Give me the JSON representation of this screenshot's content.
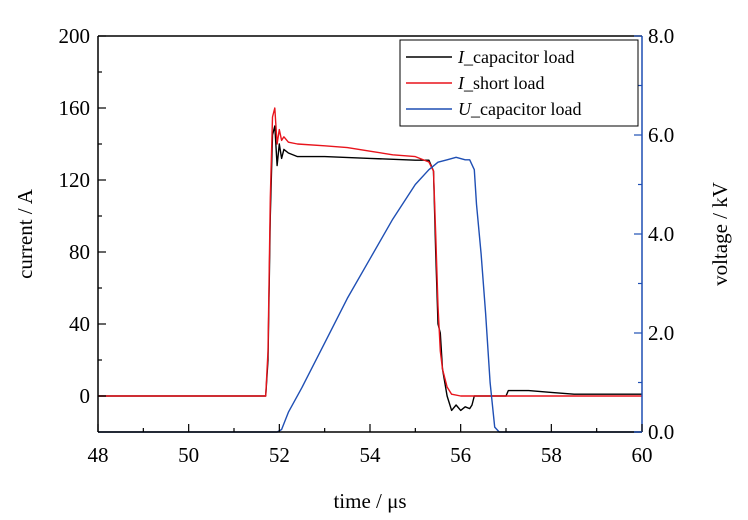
{
  "chart_data": {
    "type": "line",
    "xlabel": "time / μs",
    "ylabel_left": "current / A",
    "ylabel_right": "voltage / kV",
    "xlim": [
      48,
      60
    ],
    "ylim_left": [
      -20,
      200
    ],
    "ylim_right": [
      0,
      8
    ],
    "x_ticks": [
      48,
      50,
      52,
      54,
      56,
      58,
      60
    ],
    "x_tick_labels": [
      "48",
      "50",
      "52",
      "54",
      "56",
      "58",
      "60"
    ],
    "y_left_ticks": [
      0,
      40,
      80,
      120,
      160,
      200
    ],
    "y_left_tick_labels": [
      "0",
      "40",
      "80",
      "120",
      "160",
      "200"
    ],
    "y_right_ticks": [
      0,
      2,
      4,
      6,
      8
    ],
    "y_right_tick_labels": [
      "0.0",
      "2.0",
      "4.0",
      "6.0",
      "8.0"
    ],
    "grid": false,
    "legend_position": "top-right",
    "series": [
      {
        "name": "capacitor load",
        "name_prefix": "I",
        "axis": "left",
        "color": "#000000",
        "x": [
          48.0,
          51.7,
          51.75,
          51.8,
          51.85,
          51.9,
          51.95,
          52.0,
          52.05,
          52.1,
          52.2,
          52.4,
          53.0,
          54.0,
          55.0,
          55.3,
          55.4,
          55.45,
          55.5,
          55.55,
          55.6,
          55.7,
          55.8,
          55.9,
          56.0,
          56.1,
          56.2,
          56.25,
          56.3,
          57.0,
          57.05,
          57.1,
          57.5,
          58.0,
          58.5,
          59.0,
          59.5,
          60.0
        ],
        "y": [
          0,
          0,
          20,
          100,
          145,
          150,
          128,
          140,
          132,
          137,
          135,
          133,
          133,
          132,
          131,
          131,
          125,
          80,
          40,
          35,
          15,
          0,
          -8,
          -5,
          -8,
          -6,
          -7,
          -5,
          0,
          0,
          3,
          3,
          3,
          2,
          1,
          1,
          1,
          1
        ]
      },
      {
        "name": "short load",
        "name_prefix": "I",
        "axis": "left",
        "color": "#e8141c",
        "x": [
          48.0,
          51.7,
          51.75,
          51.8,
          51.85,
          51.9,
          51.95,
          52.0,
          52.05,
          52.1,
          52.2,
          52.4,
          53.0,
          53.5,
          54.0,
          54.5,
          55.0,
          55.3,
          55.4,
          55.45,
          55.5,
          55.55,
          55.6,
          55.7,
          55.8,
          56.0,
          56.5,
          57.0,
          57.5,
          58.0,
          59.0,
          60.0
        ],
        "y": [
          0,
          0,
          25,
          110,
          155,
          160,
          140,
          148,
          142,
          144,
          141,
          140,
          139,
          138,
          136,
          134,
          133,
          130,
          125,
          90,
          50,
          25,
          15,
          5,
          1,
          0,
          0,
          0,
          0,
          0,
          0,
          0
        ]
      },
      {
        "name": "capacitor load",
        "name_prefix": "U",
        "axis": "right",
        "color": "#1f4fb4",
        "x": [
          48.0,
          51.95,
          52.05,
          52.2,
          52.5,
          53.0,
          53.5,
          54.0,
          54.5,
          55.0,
          55.3,
          55.5,
          55.7,
          55.9,
          56.1,
          56.2,
          56.3,
          56.35,
          56.45,
          56.55,
          56.65,
          56.75,
          56.85,
          57.0,
          58.0,
          59.0,
          60.0
        ],
        "y": [
          0,
          0,
          0.05,
          0.4,
          0.9,
          1.8,
          2.7,
          3.5,
          4.3,
          5.0,
          5.3,
          5.45,
          5.5,
          5.55,
          5.5,
          5.5,
          5.3,
          4.6,
          3.6,
          2.4,
          1.0,
          0.1,
          0.0,
          0.0,
          0.0,
          0.0,
          0.0
        ]
      }
    ]
  }
}
